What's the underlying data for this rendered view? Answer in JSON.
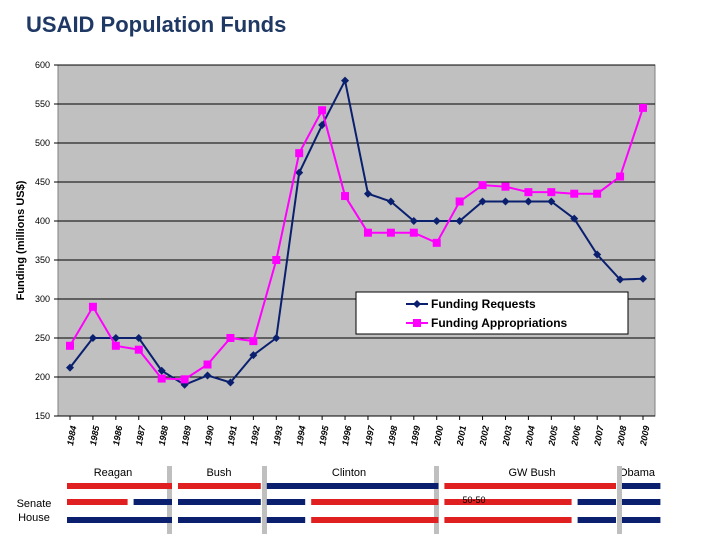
{
  "title": "USAID Population Funds",
  "chart_data": {
    "type": "line",
    "ylabel": "Funding (millions US$)",
    "xlabel": "",
    "ylim": [
      150,
      600
    ],
    "y_ticks": [
      150,
      200,
      250,
      300,
      350,
      400,
      450,
      500,
      550,
      600
    ],
    "grid": true,
    "legend_position": "center-right",
    "x": [
      "1984",
      "1985",
      "1986",
      "1987",
      "1988",
      "1989",
      "1990",
      "1991",
      "1992",
      "1993",
      "1994",
      "1995",
      "1996",
      "1997",
      "1998",
      "1999",
      "2000",
      "2001",
      "2002",
      "2003",
      "2004",
      "2005",
      "2006",
      "2007",
      "2008",
      "2009"
    ],
    "series": [
      {
        "name": "Funding Requests",
        "color": "#0a1f6e",
        "marker": "diamond",
        "values": [
          212,
          250,
          250,
          250,
          208,
          190,
          202,
          193,
          228,
          250,
          462,
          523,
          580,
          435,
          425,
          400,
          400,
          400,
          425,
          425,
          425,
          425,
          403,
          357,
          325,
          326
        ]
      },
      {
        "name": "Funding Appropriations",
        "color": "#ff00ff",
        "marker": "square",
        "values": [
          240,
          290,
          240,
          235,
          198,
          197,
          216,
          250,
          246,
          350,
          487,
          542,
          432,
          385,
          385,
          385,
          372,
          425,
          446,
          444,
          437,
          437,
          435,
          435,
          457,
          545
        ]
      }
    ]
  },
  "administrations": [
    {
      "label": "Reagan"
    },
    {
      "label": "Bush"
    },
    {
      "label": "Clinton"
    },
    {
      "label": "GW Bush"
    },
    {
      "label": "Obama"
    }
  ],
  "congress": {
    "senate_label": "Senate",
    "house_label": "House",
    "annotation": "50-50",
    "colors": {
      "democrat": "#0a1f6e",
      "republican": "#e02020",
      "separator": "#bfbfbf"
    },
    "senate": [
      {
        "party": "republican",
        "start": 1984,
        "end": 1986
      },
      {
        "party": "democrat",
        "start": 1987,
        "end": 1988
      },
      {
        "party": "democrat",
        "start": 1989,
        "end": 1992
      },
      {
        "party": "democrat",
        "start": 1993,
        "end": 1994
      },
      {
        "party": "republican",
        "start": 1995,
        "end": 2000
      },
      {
        "party": "republican",
        "start": 2001,
        "end": 2006
      },
      {
        "party": "democrat",
        "start": 2007,
        "end": 2008
      },
      {
        "party": "democrat",
        "start": 2009,
        "end": 2010
      }
    ],
    "house": [
      {
        "party": "democrat",
        "start": 1984,
        "end": 1988
      },
      {
        "party": "democrat",
        "start": 1989,
        "end": 1992
      },
      {
        "party": "democrat",
        "start": 1993,
        "end": 1994
      },
      {
        "party": "republican",
        "start": 1995,
        "end": 2000
      },
      {
        "party": "republican",
        "start": 2001,
        "end": 2006
      },
      {
        "party": "democrat",
        "start": 2007,
        "end": 2008
      },
      {
        "party": "democrat",
        "start": 2009,
        "end": 2010
      }
    ]
  }
}
